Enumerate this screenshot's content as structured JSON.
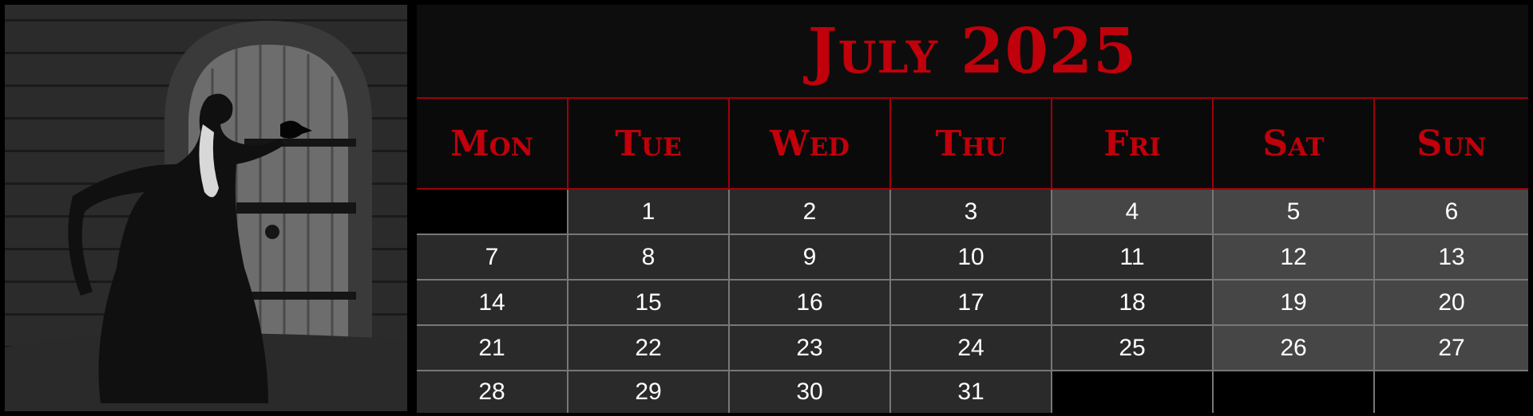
{
  "calendar": {
    "title": "July 2025",
    "weekdays": [
      "Mon",
      "Tue",
      "Wed",
      "Thu",
      "Fri",
      "Sat",
      "Sun"
    ],
    "weeks": [
      [
        "",
        "1",
        "2",
        "3",
        "4",
        "5",
        "6"
      ],
      [
        "7",
        "8",
        "9",
        "10",
        "11",
        "12",
        "13"
      ],
      [
        "14",
        "15",
        "16",
        "17",
        "18",
        "19",
        "20"
      ],
      [
        "21",
        "22",
        "23",
        "24",
        "25",
        "26",
        "27"
      ],
      [
        "28",
        "29",
        "30",
        "31",
        "",
        "",
        ""
      ]
    ]
  },
  "colors": {
    "accent_red": "#c0000b",
    "cell_dark": "#2a2a2a",
    "cell_weekend": "#464646",
    "background": "#000000"
  },
  "photo": {
    "subject": "gothic woman with raven before arched wooden door"
  }
}
